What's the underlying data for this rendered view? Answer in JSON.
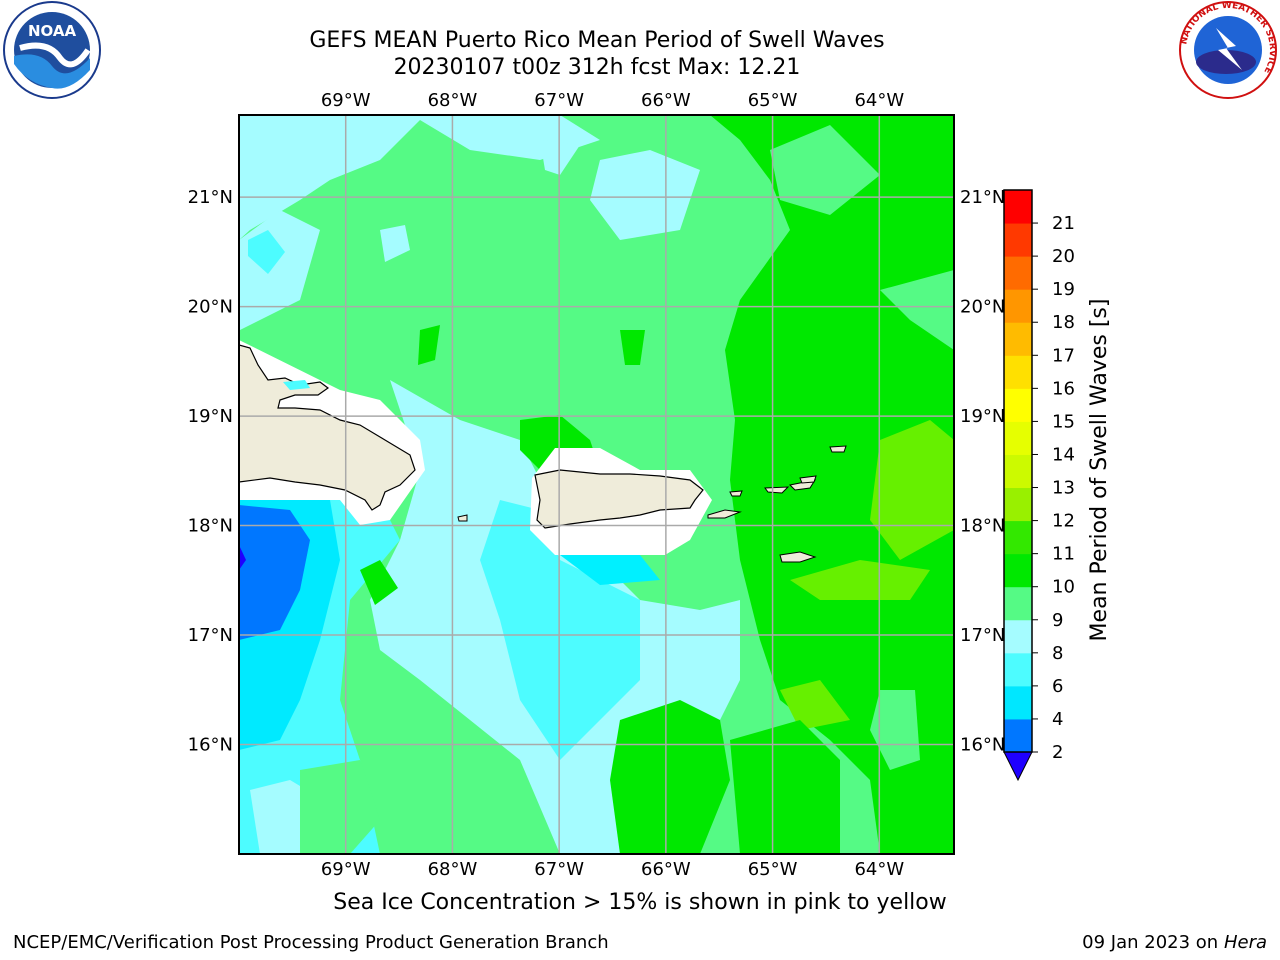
{
  "title": {
    "line1": "GEFS MEAN Puerto Rico Mean Period of Swell Waves",
    "line2": "20230107 t00z 312h fcst   Max: 12.21"
  },
  "logos": {
    "left": "noaa-logo",
    "right": "nws-logo",
    "left_text": "NOAA",
    "right_ring_text": "NATIONAL WEATHER SERVICE"
  },
  "map": {
    "lon_labels": [
      "69°W",
      "68°W",
      "67°W",
      "66°W",
      "65°W",
      "64°W"
    ],
    "lat_labels": [
      "21°N",
      "20°N",
      "19°N",
      "18°N",
      "17°N",
      "16°N"
    ],
    "lon_range": [
      -70,
      -63.3
    ],
    "lat_range": [
      15.0,
      21.75
    ],
    "land_color": "#efecda",
    "graticule_color": "#aaaaaa"
  },
  "colorbar": {
    "label": "Mean Period of Swell Waves [s]",
    "ticks": [
      "2",
      "4",
      "6",
      "8",
      "9",
      "10",
      "11",
      "12",
      "13",
      "14",
      "15",
      "16",
      "17",
      "18",
      "19",
      "20",
      "21"
    ],
    "colors": [
      "#0077ff",
      "#00e7ff",
      "#4dfcff",
      "#a5fcff",
      "#55fa85",
      "#00e800",
      "#33e800",
      "#99f000",
      "#ccfa00",
      "#e6ff00",
      "#ffff00",
      "#ffe000",
      "#ffbb00",
      "#ff9600",
      "#ff6b00",
      "#ff3900",
      "#ff0000"
    ],
    "extend_color": "#1f00ff"
  },
  "notes": {
    "sea_ice": "Sea Ice Concentration > 15% is shown in pink to yellow"
  },
  "footer": {
    "left": "NCEP/EMC/Verification Post Processing Product Generation Branch",
    "date": "09 Jan 2023 on ",
    "host": "Hera"
  }
}
